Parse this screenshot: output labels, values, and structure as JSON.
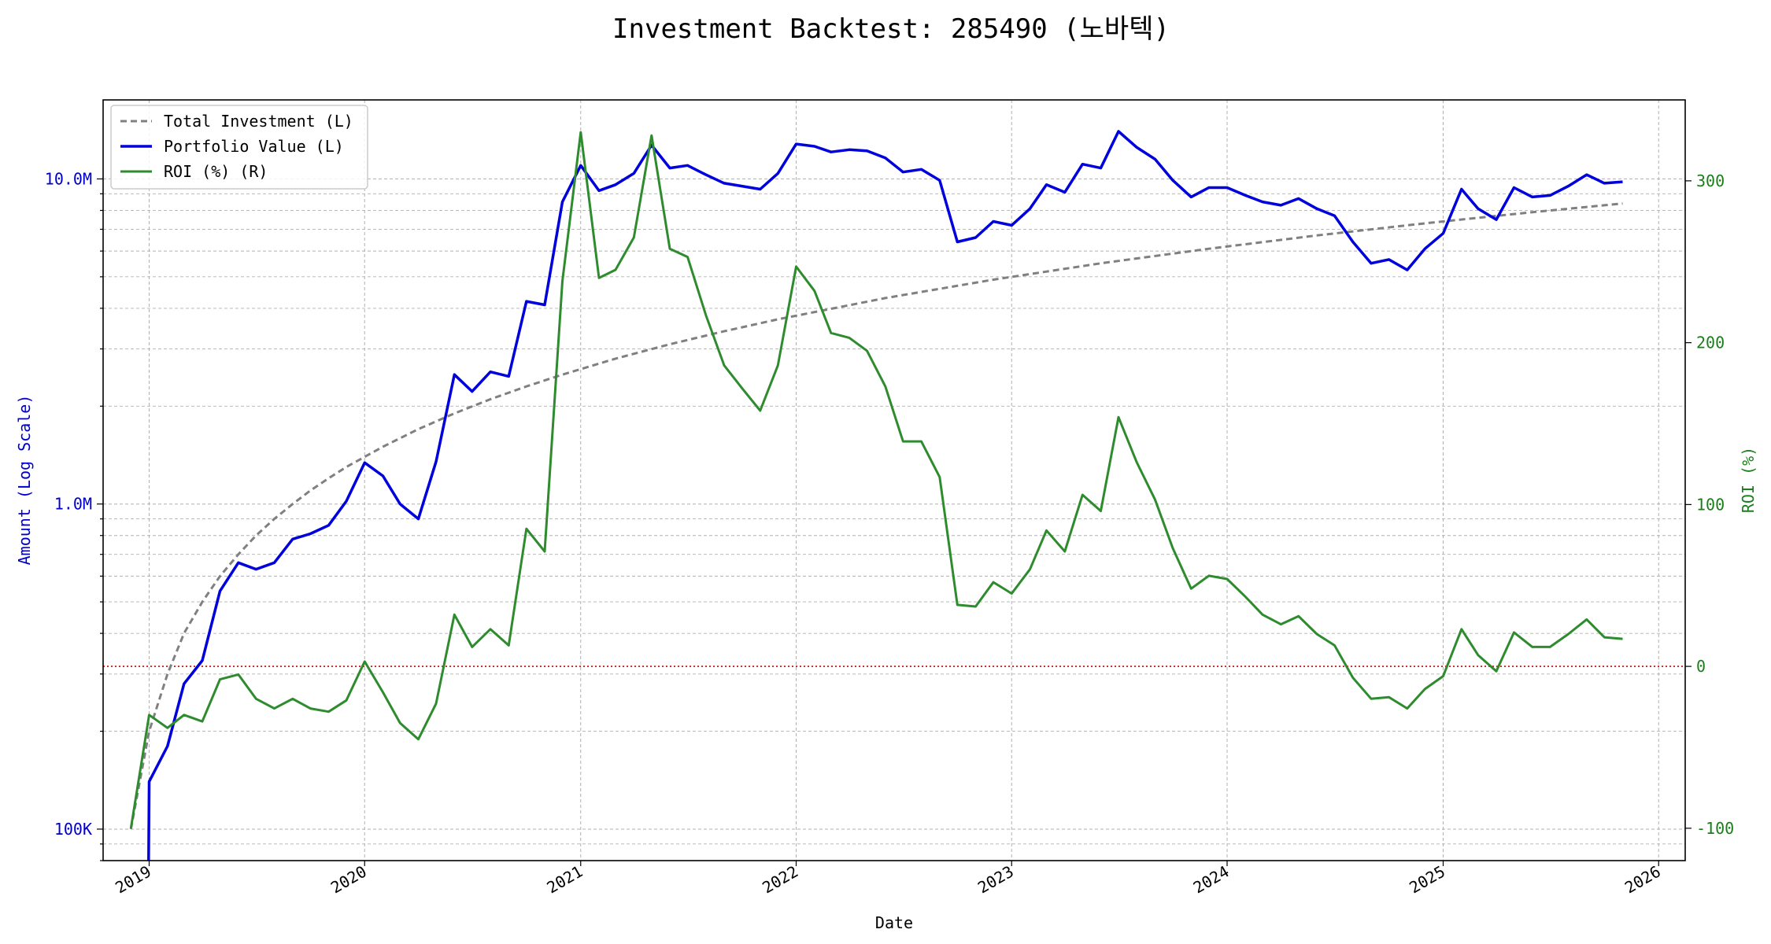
{
  "chart_data": {
    "type": "line",
    "title": "Investment Backtest: 285490 (노바텍)",
    "xlabel": "Date",
    "ylabel_left": "Amount (Log Scale)",
    "ylabel_right": "ROI (%)",
    "y_left_scale": "log",
    "y_left_range": [
      80000,
      17500000
    ],
    "y_right_range": [
      -120,
      350
    ],
    "x_range": [
      "2018-10-15",
      "2026-02-15"
    ],
    "x_ticks": [
      "2019",
      "2020",
      "2021",
      "2022",
      "2023",
      "2024",
      "2025",
      "2026"
    ],
    "y_left_ticks": [
      {
        "value": 100000,
        "label": "100K"
      },
      {
        "value": 1000000,
        "label": "1.0M"
      },
      {
        "value": 10000000,
        "label": "10.0M"
      }
    ],
    "y_right_ticks": [
      -100,
      0,
      100,
      200,
      300
    ],
    "grid": true,
    "legend_position": "top-left",
    "zero_line": {
      "value": 0,
      "axis": "right",
      "color": "#cc0000",
      "style": "dotted"
    },
    "series": [
      {
        "name": "Total Investment (L)",
        "axis": "left",
        "color": "#808080",
        "style": "dashed",
        "x": [
          "2018-12-01",
          "2019-01-01",
          "2019-02-01",
          "2019-03-01",
          "2019-04-01",
          "2019-05-01",
          "2019-06-01",
          "2019-07-01",
          "2019-08-01",
          "2019-09-01",
          "2019-10-01",
          "2019-11-01",
          "2019-12-01",
          "2020-02-01",
          "2020-04-01",
          "2020-06-01",
          "2020-08-01",
          "2020-10-01",
          "2020-12-01",
          "2021-03-01",
          "2021-06-01",
          "2021-09-01",
          "2021-12-01",
          "2022-06-01",
          "2022-12-01",
          "2023-06-01",
          "2023-12-01",
          "2024-06-01",
          "2024-12-01",
          "2025-06-01",
          "2025-11-01"
        ],
        "values": [
          100000,
          200000,
          300000,
          400000,
          500000,
          600000,
          700000,
          800000,
          900000,
          1000000,
          1100000,
          1200000,
          1300000,
          1500000,
          1700000,
          1900000,
          2100000,
          2300000,
          2500000,
          2800000,
          3100000,
          3400000,
          3700000,
          4300000,
          4900000,
          5500000,
          6100000,
          6700000,
          7300000,
          7900000,
          8400000
        ]
      },
      {
        "name": "Portfolio Value (L)",
        "axis": "left",
        "color": "#0000dd",
        "style": "solid",
        "x": [
          "2018-12-31",
          "2019-01-01",
          "2019-02-01",
          "2019-03-01",
          "2019-04-01",
          "2019-05-01",
          "2019-06-01",
          "2019-07-01",
          "2019-08-01",
          "2019-09-01",
          "2019-10-01",
          "2019-11-01",
          "2019-12-01",
          "2020-01-01",
          "2020-02-01",
          "2020-03-01",
          "2020-04-01",
          "2020-05-01",
          "2020-06-01",
          "2020-07-01",
          "2020-08-01",
          "2020-09-01",
          "2020-10-01",
          "2020-11-01",
          "2020-12-01",
          "2021-01-01",
          "2021-02-01",
          "2021-03-01",
          "2021-04-01",
          "2021-05-01",
          "2021-06-01",
          "2021-07-01",
          "2021-08-01",
          "2021-09-01",
          "2021-10-01",
          "2021-11-01",
          "2021-12-01",
          "2022-01-01",
          "2022-02-01",
          "2022-03-01",
          "2022-04-01",
          "2022-05-01",
          "2022-06-01",
          "2022-07-01",
          "2022-08-01",
          "2022-09-01",
          "2022-10-01",
          "2022-11-01",
          "2022-12-01",
          "2023-01-01",
          "2023-02-01",
          "2023-03-01",
          "2023-04-01",
          "2023-05-01",
          "2023-06-01",
          "2023-07-01",
          "2023-08-01",
          "2023-09-01",
          "2023-10-01",
          "2023-11-01",
          "2023-12-01",
          "2024-01-01",
          "2024-02-01",
          "2024-03-01",
          "2024-04-01",
          "2024-05-01",
          "2024-06-01",
          "2024-07-01",
          "2024-08-01",
          "2024-09-01",
          "2024-10-01",
          "2024-11-01",
          "2024-12-01",
          "2025-01-01",
          "2025-02-01",
          "2025-03-01",
          "2025-04-01",
          "2025-05-01",
          "2025-06-01",
          "2025-07-01",
          "2025-08-01",
          "2025-09-01",
          "2025-10-01",
          "2025-11-01"
        ],
        "values": [
          80000,
          140000,
          180000,
          280000,
          330000,
          540000,
          660000,
          630000,
          660000,
          780000,
          810000,
          860000,
          1020000,
          1340000,
          1220000,
          1000000,
          900000,
          1350000,
          2500000,
          2220000,
          2550000,
          2470000,
          4200000,
          4100000,
          8500000,
          11000000,
          9200000,
          9600000,
          10400000,
          12700000,
          10800000,
          11000000,
          10300000,
          9700000,
          9500000,
          9300000,
          10400000,
          12800000,
          12600000,
          12100000,
          12300000,
          12200000,
          11600000,
          10500000,
          10700000,
          9900000,
          6400000,
          6600000,
          7400000,
          7200000,
          8100000,
          9600000,
          9100000,
          11100000,
          10800000,
          14000000,
          12500000,
          11500000,
          9900000,
          8800000,
          9400000,
          9400000,
          8900000,
          8500000,
          8300000,
          8700000,
          8100000,
          7700000,
          6400000,
          5500000,
          5650000,
          5250000,
          6100000,
          6800000,
          9300000,
          8100000,
          7500000,
          9400000,
          8800000,
          8900000,
          9500000,
          10300000,
          9700000,
          9800000
        ]
      },
      {
        "name": "ROI (%) (R)",
        "axis": "right",
        "color": "#2e8b2e",
        "style": "solid",
        "x": [
          "2018-12-01",
          "2019-01-01",
          "2019-02-01",
          "2019-03-01",
          "2019-04-01",
          "2019-05-01",
          "2019-06-01",
          "2019-07-01",
          "2019-08-01",
          "2019-09-01",
          "2019-10-01",
          "2019-11-01",
          "2019-12-01",
          "2020-01-01",
          "2020-02-01",
          "2020-03-01",
          "2020-04-01",
          "2020-05-01",
          "2020-06-01",
          "2020-07-01",
          "2020-08-01",
          "2020-09-01",
          "2020-10-01",
          "2020-11-01",
          "2020-12-01",
          "2021-01-01",
          "2021-02-01",
          "2021-03-01",
          "2021-04-01",
          "2021-05-01",
          "2021-06-01",
          "2021-07-01",
          "2021-08-01",
          "2021-09-01",
          "2021-10-01",
          "2021-11-01",
          "2021-12-01",
          "2022-01-01",
          "2022-02-01",
          "2022-03-01",
          "2022-04-01",
          "2022-05-01",
          "2022-06-01",
          "2022-07-01",
          "2022-08-01",
          "2022-09-01",
          "2022-10-01",
          "2022-11-01",
          "2022-12-01",
          "2023-01-01",
          "2023-02-01",
          "2023-03-01",
          "2023-04-01",
          "2023-05-01",
          "2023-06-01",
          "2023-07-01",
          "2023-08-01",
          "2023-09-01",
          "2023-10-01",
          "2023-11-01",
          "2023-12-01",
          "2024-01-01",
          "2024-02-01",
          "2024-03-01",
          "2024-04-01",
          "2024-05-01",
          "2024-06-01",
          "2024-07-01",
          "2024-08-01",
          "2024-09-01",
          "2024-10-01",
          "2024-11-01",
          "2024-12-01",
          "2025-01-01",
          "2025-02-01",
          "2025-03-01",
          "2025-04-01",
          "2025-05-01",
          "2025-06-01",
          "2025-07-01",
          "2025-08-01",
          "2025-09-01",
          "2025-10-01",
          "2025-11-01"
        ],
        "values": [
          -100,
          -30,
          -38,
          -30,
          -34,
          -8,
          -5,
          -20,
          -26,
          -20,
          -26,
          -28,
          -21,
          3,
          -16,
          -35,
          -45,
          -23,
          32,
          12,
          23,
          13,
          85,
          71,
          238,
          330,
          240,
          245,
          265,
          328,
          258,
          253,
          217,
          186,
          172,
          158,
          186,
          247,
          232,
          206,
          203,
          195,
          173,
          139,
          139,
          117,
          38,
          37,
          52,
          45,
          60,
          84,
          71,
          106,
          96,
          154,
          126,
          103,
          73,
          48,
          56,
          54,
          43,
          32,
          26,
          31,
          20,
          13,
          -7,
          -20,
          -19,
          -26,
          -14,
          -6,
          23,
          7,
          -3,
          21,
          12,
          12,
          20,
          29,
          18,
          17
        ]
      }
    ]
  }
}
